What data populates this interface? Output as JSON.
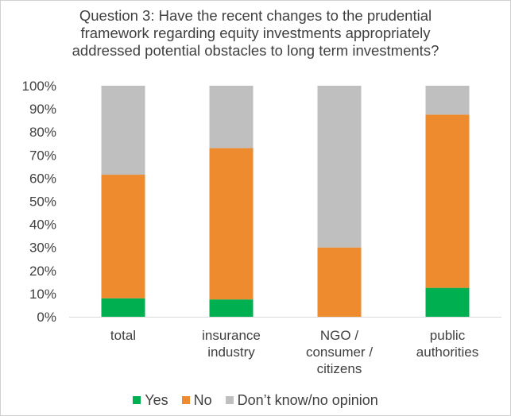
{
  "chart_data": {
    "type": "bar",
    "stacked": true,
    "title_lines": [
      "Question 3: Have the recent changes to the prudential",
      "framework regarding equity investments appropriately",
      "addressed potential obstacles to long term investments?"
    ],
    "categories": [
      [
        "total"
      ],
      [
        "insurance",
        "industry"
      ],
      [
        "NGO /",
        "consumer /",
        "citizens"
      ],
      [
        "public",
        "authorities"
      ]
    ],
    "series": [
      {
        "name": "Yes",
        "color": "#00b050",
        "values": [
          8,
          7.5,
          0,
          12.5
        ]
      },
      {
        "name": "No",
        "color": "#ed8b2e",
        "values": [
          53.5,
          65.5,
          30,
          75
        ]
      },
      {
        "name": "Don’t know/no opinion",
        "color": "#bfbfbf",
        "values": [
          38.5,
          27,
          70,
          12.5
        ]
      }
    ],
    "ylim": [
      0,
      100
    ],
    "yticks": [
      "0%",
      "10%",
      "20%",
      "30%",
      "40%",
      "50%",
      "60%",
      "70%",
      "80%",
      "90%",
      "100%"
    ],
    "grid": false,
    "legend_position": "bottom"
  }
}
